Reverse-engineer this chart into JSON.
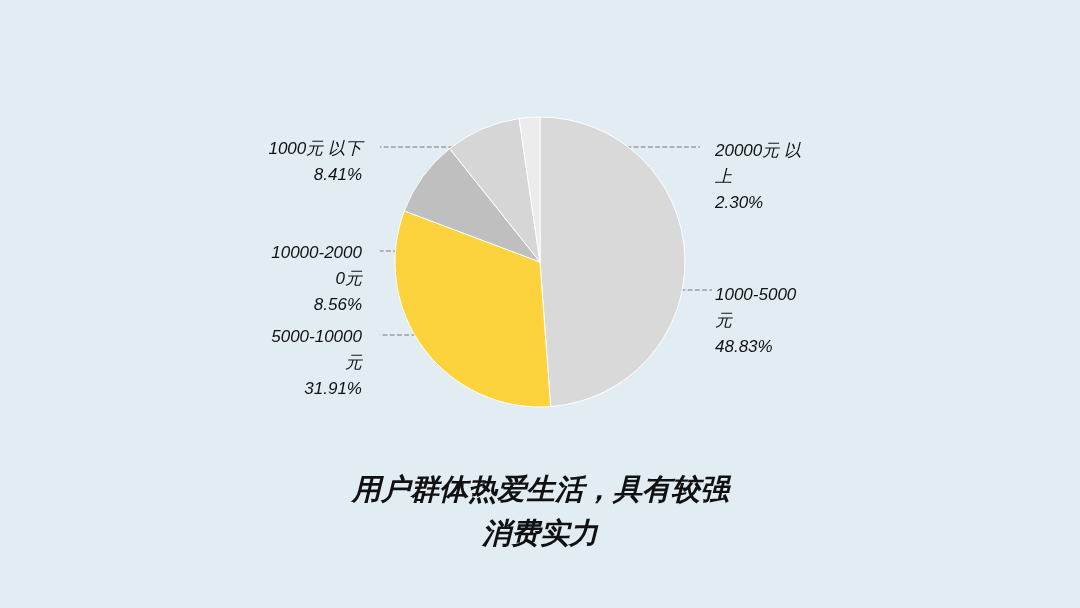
{
  "chart_data": {
    "type": "pie",
    "title": "用户群体热爱生活，具有较强消费实力",
    "categories": [
      "1000-5000元",
      "5000-10000元",
      "10000-20000元",
      "1000元 以下",
      "20000元 以上"
    ],
    "values": [
      48.83,
      31.91,
      8.56,
      8.41,
      2.3
    ],
    "value_labels": [
      "48.83%",
      "31.91%",
      "8.56%",
      "8.41%",
      "2.30%"
    ],
    "colors": [
      "#d9d9d9",
      "#fdd33d",
      "#bfbfbf",
      "#d6d6d6",
      "#ececec"
    ]
  }
}
